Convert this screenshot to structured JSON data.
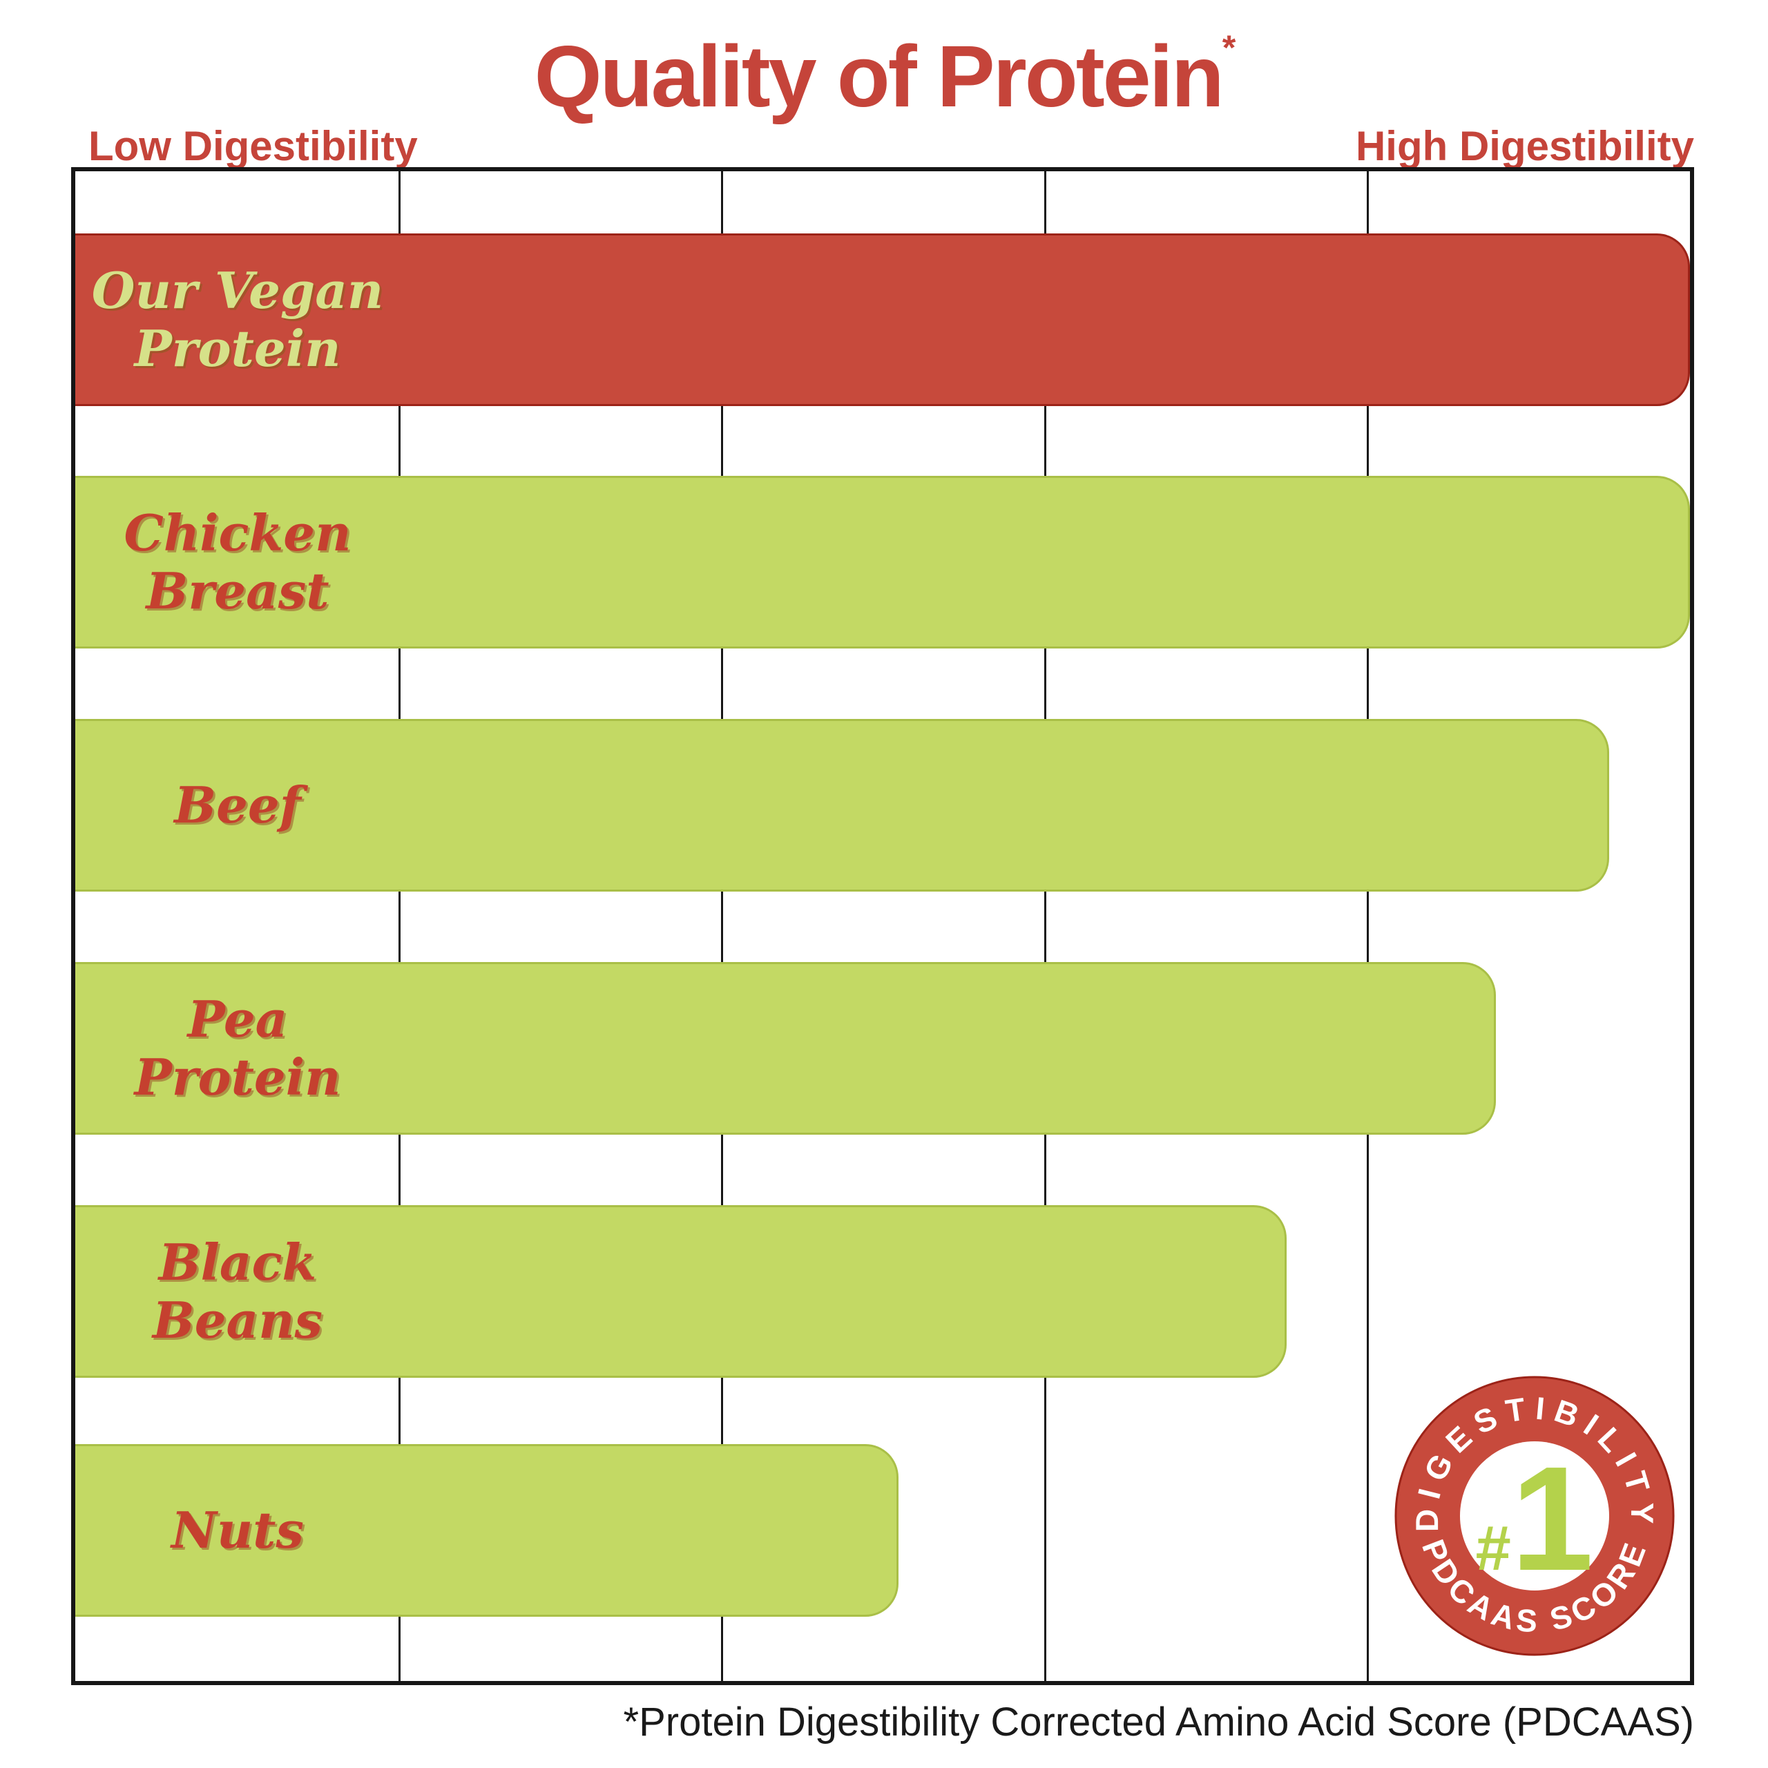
{
  "title": {
    "text": "Quality of Protein",
    "superscript": "*"
  },
  "header": {
    "left_label": "Low Digestibility",
    "right_label": "High Digestibility"
  },
  "footnote": "*Protein Digestibility Corrected Amino Acid Score (PDCAAS)",
  "badge": {
    "arc_top_text": "DIGESTIBILITY",
    "arc_bottom_text": "PDCAAS SCORE",
    "center_hash": "#",
    "center_number": "1"
  },
  "colors": {
    "bar_red": "#c74a3c",
    "bar_red_edge": "#9c2318",
    "bar_green": "#c3d964",
    "bar_green_edge": "#a9bf47",
    "text_red": "#c5402f",
    "text_green": "#d6e189",
    "title_red": "#c5443a",
    "border_black": "#161616",
    "badge_number_green": "#b4d24b",
    "badge_text_white": "#ffffff",
    "footnote_black": "#1a1a1a"
  },
  "chart_data": {
    "type": "bar",
    "orientation": "horizontal",
    "title": "Quality of Protein*",
    "xlabel_low": "Low Digestibility",
    "xlabel_high": "High Digestibility",
    "xlim": [
      0,
      1
    ],
    "grid": "vertical lines only",
    "gridline_positions_pct": [
      20,
      40,
      60,
      80
    ],
    "categories": [
      "Our Vegan Protein",
      "Chicken Breast",
      "Beef",
      "Pea Protein",
      "Black Beans",
      "Nuts"
    ],
    "values": [
      1.0,
      1.0,
      0.95,
      0.88,
      0.75,
      0.51
    ],
    "bars": [
      {
        "label": "Our Vegan Protein",
        "label_lines": [
          "Our Vegan",
          "Protein"
        ],
        "value": 1.0,
        "color": "#c74a3c",
        "edge_color": "#9c2318",
        "label_color": "#d6e189"
      },
      {
        "label": "Chicken Breast",
        "label_lines": [
          "Chicken",
          "Breast"
        ],
        "value": 1.0,
        "color": "#c3d964",
        "edge_color": "#a9bf47",
        "label_color": "#c5402f"
      },
      {
        "label": "Beef",
        "label_lines": [
          "Beef"
        ],
        "value": 0.95,
        "color": "#c3d964",
        "edge_color": "#a9bf47",
        "label_color": "#c5402f"
      },
      {
        "label": "Pea Protein",
        "label_lines": [
          "Pea",
          "Protein"
        ],
        "value": 0.88,
        "color": "#c3d964",
        "edge_color": "#a9bf47",
        "label_color": "#c5402f"
      },
      {
        "label": "Black Beans",
        "label_lines": [
          "Black",
          "Beans"
        ],
        "value": 0.75,
        "color": "#c3d964",
        "edge_color": "#a9bf47",
        "label_color": "#c5402f"
      },
      {
        "label": "Nuts",
        "label_lines": [
          "Nuts"
        ],
        "value": 0.51,
        "color": "#c3d964",
        "edge_color": "#a9bf47",
        "label_color": "#c5402f"
      }
    ]
  }
}
